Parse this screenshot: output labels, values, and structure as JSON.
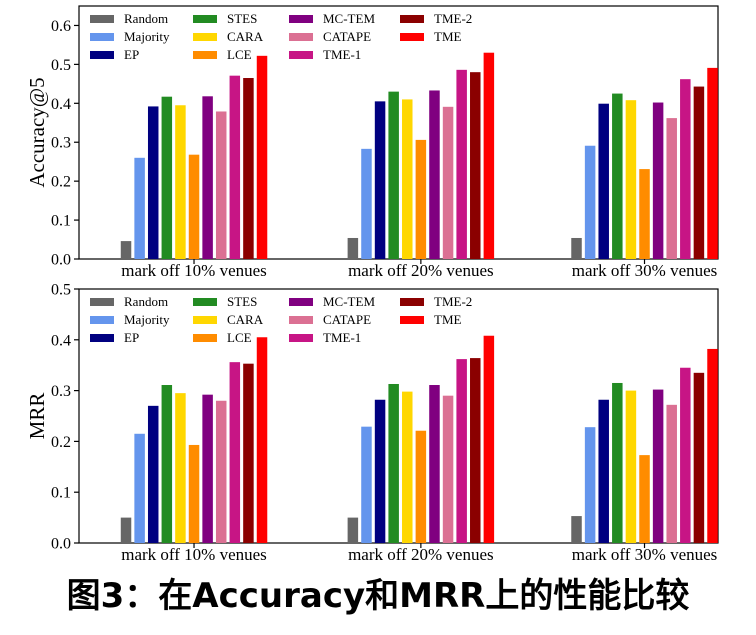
{
  "caption": "图3：在Accuracy和MRR上的性能比较",
  "series_styles": [
    {
      "name": "Random",
      "color": "#666666"
    },
    {
      "name": "Majority",
      "color": "#6495ED"
    },
    {
      "name": "EP",
      "color": "#000080"
    },
    {
      "name": "STES",
      "color": "#228B22"
    },
    {
      "name": "CARA",
      "color": "#FFD700"
    },
    {
      "name": "LCE",
      "color": "#FF8C00"
    },
    {
      "name": "MC-TEM",
      "color": "#800080"
    },
    {
      "name": "CATAPE",
      "color": "#DB7093"
    },
    {
      "name": "TME-1",
      "color": "#C71585"
    },
    {
      "name": "TME-2",
      "color": "#8B0000"
    },
    {
      "name": "TME",
      "color": "#FF0000"
    }
  ],
  "chart_data": [
    {
      "type": "bar",
      "ylabel": "Accuracy@5",
      "xlabel": "",
      "ylim": [
        0,
        0.65
      ],
      "yticks": [
        "0.0",
        "0.1",
        "0.2",
        "0.3",
        "0.4",
        "0.5",
        "0.6"
      ],
      "categories": [
        "mark off 10% venues",
        "mark off 20% venues",
        "mark off 30% venues"
      ],
      "legend_position": "top",
      "series": [
        {
          "name": "Random",
          "values": [
            0.046,
            0.054,
            0.054
          ]
        },
        {
          "name": "Majority",
          "values": [
            0.26,
            0.283,
            0.291
          ]
        },
        {
          "name": "EP",
          "values": [
            0.392,
            0.405,
            0.399
          ]
        },
        {
          "name": "STES",
          "values": [
            0.417,
            0.43,
            0.425
          ]
        },
        {
          "name": "CARA",
          "values": [
            0.395,
            0.41,
            0.408
          ]
        },
        {
          "name": "LCE",
          "values": [
            0.268,
            0.306,
            0.231
          ]
        },
        {
          "name": "MC-TEM",
          "values": [
            0.418,
            0.433,
            0.402
          ]
        },
        {
          "name": "CATAPE",
          "values": [
            0.379,
            0.391,
            0.362
          ]
        },
        {
          "name": "TME-1",
          "values": [
            0.471,
            0.486,
            0.462
          ]
        },
        {
          "name": "TME-2",
          "values": [
            0.465,
            0.48,
            0.443
          ]
        },
        {
          "name": "TME",
          "values": [
            0.522,
            0.53,
            0.491
          ]
        }
      ]
    },
    {
      "type": "bar",
      "ylabel": "MRR",
      "xlabel": "",
      "ylim": [
        0,
        0.5
      ],
      "yticks": [
        "0.0",
        "0.1",
        "0.2",
        "0.3",
        "0.4",
        "0.5"
      ],
      "categories": [
        "mark off 10% venues",
        "mark off 20% venues",
        "mark off 30% venues"
      ],
      "legend_position": "top",
      "series": [
        {
          "name": "Random",
          "values": [
            0.05,
            0.05,
            0.053
          ]
        },
        {
          "name": "Majority",
          "values": [
            0.215,
            0.229,
            0.228
          ]
        },
        {
          "name": "EP",
          "values": [
            0.27,
            0.282,
            0.282
          ]
        },
        {
          "name": "STES",
          "values": [
            0.311,
            0.313,
            0.315
          ]
        },
        {
          "name": "CARA",
          "values": [
            0.295,
            0.298,
            0.3
          ]
        },
        {
          "name": "LCE",
          "values": [
            0.193,
            0.221,
            0.173
          ]
        },
        {
          "name": "MC-TEM",
          "values": [
            0.292,
            0.311,
            0.302
          ]
        },
        {
          "name": "CATAPE",
          "values": [
            0.28,
            0.29,
            0.272
          ]
        },
        {
          "name": "TME-1",
          "values": [
            0.356,
            0.362,
            0.345
          ]
        },
        {
          "name": "TME-2",
          "values": [
            0.353,
            0.364,
            0.335
          ]
        },
        {
          "name": "TME",
          "values": [
            0.405,
            0.408,
            0.382
          ]
        }
      ]
    }
  ]
}
